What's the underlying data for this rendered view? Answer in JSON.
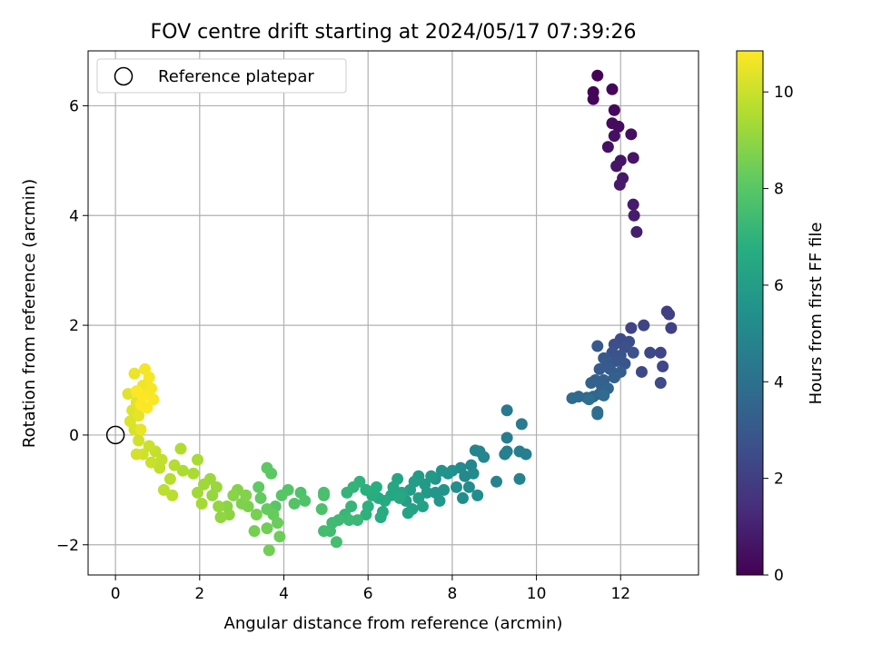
{
  "chart_data": {
    "type": "scatter",
    "title": "FOV centre drift starting at 2024/05/17 07:39:26",
    "xlabel": "Angular distance from reference (arcmin)",
    "ylabel": "Rotation from reference (arcmin)",
    "xlim": [
      -0.65,
      13.85
    ],
    "ylim": [
      -2.55,
      7.0
    ],
    "xticks": [
      0,
      2,
      4,
      6,
      8,
      10,
      12
    ],
    "yticks": [
      -2,
      0,
      2,
      4,
      6
    ],
    "grid": true,
    "legend": {
      "position": "top-left",
      "entries": [
        "Reference platepar"
      ]
    },
    "reference_point": {
      "x": 0,
      "y": 0,
      "marker": "open-circle"
    },
    "colorbar": {
      "label": "Hours from first FF file",
      "colormap": "viridis",
      "range": [
        0,
        10.85
      ],
      "ticks": [
        0,
        2,
        4,
        6,
        8,
        10
      ]
    },
    "series": [
      {
        "color_by": "hours",
        "points": [
          [
            11.45,
            6.55,
            0.05
          ],
          [
            11.35,
            6.25,
            0.1
          ],
          [
            11.35,
            6.12,
            0.15
          ],
          [
            11.8,
            6.3,
            0.2
          ],
          [
            11.85,
            5.92,
            0.25
          ],
          [
            11.8,
            5.68,
            0.3
          ],
          [
            11.95,
            5.62,
            0.35
          ],
          [
            12.25,
            5.48,
            0.4
          ],
          [
            11.85,
            5.45,
            0.45
          ],
          [
            11.7,
            5.25,
            0.5
          ],
          [
            12.0,
            5.0,
            0.55
          ],
          [
            12.3,
            5.05,
            0.6
          ],
          [
            11.9,
            4.9,
            0.65
          ],
          [
            12.05,
            4.68,
            0.7
          ],
          [
            11.98,
            4.56,
            0.75
          ],
          [
            12.3,
            4.2,
            0.8
          ],
          [
            12.32,
            4.0,
            0.85
          ],
          [
            12.38,
            3.7,
            0.9
          ],
          [
            13.1,
            2.25,
            2.0
          ],
          [
            13.15,
            2.2,
            2.05
          ],
          [
            13.2,
            1.95,
            2.1
          ],
          [
            12.55,
            2.0,
            2.15
          ],
          [
            12.25,
            1.95,
            2.2
          ],
          [
            12.95,
            1.5,
            2.25
          ],
          [
            13.0,
            1.25,
            2.3
          ],
          [
            12.7,
            1.5,
            2.35
          ],
          [
            12.5,
            1.15,
            2.4
          ],
          [
            12.95,
            0.95,
            2.45
          ],
          [
            12.0,
            1.75,
            2.5
          ],
          [
            12.2,
            1.7,
            2.55
          ],
          [
            11.85,
            1.65,
            2.6
          ],
          [
            12.1,
            1.6,
            2.65
          ],
          [
            12.3,
            1.5,
            2.7
          ],
          [
            11.8,
            1.5,
            2.75
          ],
          [
            12.0,
            1.45,
            2.8
          ],
          [
            11.9,
            1.35,
            2.85
          ],
          [
            12.1,
            1.3,
            2.9
          ],
          [
            11.7,
            1.3,
            2.95
          ],
          [
            11.45,
            1.62,
            3.0
          ],
          [
            11.6,
            1.4,
            3.05
          ],
          [
            11.5,
            1.2,
            3.1
          ],
          [
            11.75,
            1.2,
            3.15
          ],
          [
            12.0,
            1.15,
            3.2
          ],
          [
            11.85,
            1.05,
            3.25
          ],
          [
            11.6,
            1.0,
            3.3
          ],
          [
            11.4,
            1.0,
            3.35
          ],
          [
            11.55,
            0.9,
            3.4
          ],
          [
            11.3,
            0.95,
            3.45
          ],
          [
            11.7,
            0.85,
            3.5
          ],
          [
            11.5,
            0.75,
            3.55
          ],
          [
            11.35,
            0.7,
            3.6
          ],
          [
            11.2,
            0.68,
            3.65
          ],
          [
            11.0,
            0.7,
            3.7
          ],
          [
            10.85,
            0.67,
            3.75
          ],
          [
            11.6,
            0.72,
            3.8
          ],
          [
            11.45,
            0.42,
            3.85
          ],
          [
            11.45,
            0.38,
            3.9
          ],
          [
            11.25,
            0.65,
            3.95
          ],
          [
            9.3,
            0.45,
            4.4
          ],
          [
            9.65,
            0.2,
            4.45
          ],
          [
            9.3,
            -0.05,
            4.5
          ],
          [
            9.3,
            -0.3,
            4.55
          ],
          [
            9.6,
            -0.3,
            4.6
          ],
          [
            9.75,
            -0.35,
            4.65
          ],
          [
            9.25,
            -0.35,
            4.7
          ],
          [
            9.6,
            -0.8,
            4.75
          ],
          [
            9.05,
            -0.85,
            4.8
          ],
          [
            8.65,
            -0.3,
            4.85
          ],
          [
            8.55,
            -0.28,
            4.9
          ],
          [
            8.75,
            -0.4,
            4.95
          ],
          [
            8.45,
            -0.55,
            5.0
          ],
          [
            8.3,
            -0.75,
            5.05
          ],
          [
            8.5,
            -0.7,
            5.1
          ],
          [
            8.2,
            -0.6,
            5.15
          ],
          [
            8.4,
            -0.95,
            5.2
          ],
          [
            8.6,
            -1.1,
            5.25
          ],
          [
            8.25,
            -1.15,
            5.3
          ],
          [
            8.1,
            -0.95,
            5.35
          ],
          [
            8.0,
            -0.65,
            5.4
          ],
          [
            7.9,
            -0.7,
            5.45
          ],
          [
            7.75,
            -0.65,
            5.5
          ],
          [
            7.6,
            -0.8,
            5.55
          ],
          [
            7.8,
            -1.0,
            5.6
          ],
          [
            7.6,
            -1.05,
            5.65
          ],
          [
            7.7,
            -1.2,
            5.7
          ],
          [
            7.4,
            -1.05,
            5.75
          ],
          [
            7.5,
            -0.75,
            5.8
          ],
          [
            7.35,
            -0.9,
            5.85
          ],
          [
            7.2,
            -0.75,
            5.9
          ],
          [
            7.1,
            -0.85,
            5.95
          ],
          [
            7.0,
            -1.0,
            6.0
          ],
          [
            6.9,
            -1.2,
            6.05
          ],
          [
            7.2,
            -1.15,
            6.1
          ],
          [
            7.3,
            -1.3,
            6.15
          ],
          [
            7.05,
            -1.35,
            6.2
          ],
          [
            6.95,
            -1.42,
            6.25
          ],
          [
            6.8,
            -1.05,
            6.3
          ],
          [
            6.7,
            -0.8,
            6.35
          ],
          [
            6.6,
            -0.95,
            6.4
          ],
          [
            6.55,
            -1.1,
            6.45
          ],
          [
            6.75,
            -1.15,
            6.5
          ],
          [
            6.4,
            -1.2,
            6.55
          ],
          [
            6.25,
            -1.15,
            6.6
          ],
          [
            6.35,
            -1.4,
            6.65
          ],
          [
            6.3,
            -1.5,
            6.7
          ],
          [
            6.1,
            -1.1,
            6.75
          ],
          [
            6.2,
            -0.95,
            6.8
          ],
          [
            5.95,
            -1.0,
            6.85
          ],
          [
            6.0,
            -1.3,
            6.9
          ],
          [
            5.95,
            -1.45,
            6.95
          ],
          [
            5.8,
            -0.85,
            7.0
          ],
          [
            5.65,
            -0.95,
            7.05
          ],
          [
            5.5,
            -1.05,
            7.1
          ],
          [
            5.6,
            -1.3,
            7.15
          ],
          [
            5.45,
            -1.45,
            7.2
          ],
          [
            5.75,
            -1.55,
            7.25
          ],
          [
            5.55,
            -1.55,
            7.3
          ],
          [
            5.3,
            -1.55,
            7.35
          ],
          [
            5.15,
            -1.6,
            7.4
          ],
          [
            5.1,
            -1.75,
            7.45
          ],
          [
            4.95,
            -1.75,
            7.5
          ],
          [
            5.25,
            -1.95,
            7.55
          ],
          [
            4.95,
            -1.1,
            7.6
          ],
          [
            4.95,
            -1.05,
            7.65
          ],
          [
            4.9,
            -1.35,
            7.7
          ],
          [
            4.4,
            -1.05,
            7.75
          ],
          [
            4.5,
            -1.2,
            7.8
          ],
          [
            4.25,
            -1.25,
            7.85
          ],
          [
            4.1,
            -1.0,
            7.9
          ],
          [
            3.95,
            -1.1,
            7.95
          ],
          [
            3.8,
            -1.3,
            8.0
          ],
          [
            3.7,
            -0.7,
            8.05
          ],
          [
            3.6,
            -0.6,
            8.1
          ],
          [
            3.4,
            -0.95,
            8.15
          ],
          [
            3.45,
            -1.15,
            8.2
          ],
          [
            3.6,
            -1.35,
            8.25
          ],
          [
            3.75,
            -1.45,
            8.3
          ],
          [
            3.85,
            -1.6,
            8.35
          ],
          [
            3.9,
            -1.85,
            8.4
          ],
          [
            3.6,
            -1.7,
            8.45
          ],
          [
            3.65,
            -2.1,
            8.5
          ],
          [
            3.3,
            -1.75,
            8.55
          ],
          [
            3.35,
            -1.45,
            8.6
          ],
          [
            3.15,
            -1.3,
            8.65
          ],
          [
            3.0,
            -1.25,
            8.7
          ],
          [
            3.1,
            -1.1,
            8.75
          ],
          [
            2.9,
            -1.0,
            8.8
          ],
          [
            2.8,
            -1.1,
            8.85
          ],
          [
            2.65,
            -1.3,
            8.9
          ],
          [
            2.7,
            -1.45,
            8.95
          ],
          [
            2.5,
            -1.5,
            9.0
          ],
          [
            2.45,
            -1.3,
            9.05
          ],
          [
            2.3,
            -1.1,
            9.1
          ],
          [
            2.4,
            -0.95,
            9.15
          ],
          [
            2.25,
            -0.8,
            9.2
          ],
          [
            2.1,
            -0.9,
            9.25
          ],
          [
            1.95,
            -1.05,
            9.3
          ],
          [
            2.05,
            -1.25,
            9.35
          ],
          [
            1.95,
            -0.45,
            9.4
          ],
          [
            1.85,
            -0.7,
            9.45
          ],
          [
            1.6,
            -0.65,
            9.5
          ],
          [
            1.55,
            -0.25,
            9.55
          ],
          [
            1.4,
            -0.55,
            9.6
          ],
          [
            1.3,
            -0.8,
            9.65
          ],
          [
            1.35,
            -1.1,
            9.7
          ],
          [
            1.15,
            -1.0,
            9.75
          ],
          [
            1.05,
            -0.6,
            9.8
          ],
          [
            1.1,
            -0.45,
            9.85
          ],
          [
            0.95,
            -0.3,
            9.9
          ],
          [
            0.85,
            -0.5,
            9.95
          ],
          [
            0.8,
            -0.2,
            10.0
          ],
          [
            0.65,
            -0.35,
            10.05
          ],
          [
            0.55,
            -0.1,
            10.1
          ],
          [
            0.5,
            -0.35,
            10.15
          ],
          [
            0.45,
            0.1,
            10.2
          ],
          [
            0.35,
            0.25,
            10.25
          ],
          [
            0.4,
            0.45,
            10.3
          ],
          [
            0.3,
            0.75,
            10.35
          ],
          [
            0.5,
            0.6,
            10.4
          ],
          [
            0.55,
            0.35,
            10.45
          ],
          [
            0.6,
            0.1,
            10.5
          ],
          [
            0.45,
            1.12,
            10.55
          ],
          [
            0.65,
            0.9,
            10.6
          ],
          [
            0.75,
            0.75,
            10.65
          ],
          [
            0.7,
            1.2,
            10.7
          ],
          [
            0.8,
            1.05,
            10.72
          ],
          [
            0.85,
            0.85,
            10.75
          ],
          [
            0.9,
            0.65,
            10.78
          ],
          [
            0.75,
            0.5,
            10.8
          ],
          [
            0.6,
            0.55,
            10.82
          ],
          [
            0.5,
            0.8,
            10.84
          ],
          [
            0.65,
            0.7,
            10.85
          ]
        ]
      }
    ]
  }
}
